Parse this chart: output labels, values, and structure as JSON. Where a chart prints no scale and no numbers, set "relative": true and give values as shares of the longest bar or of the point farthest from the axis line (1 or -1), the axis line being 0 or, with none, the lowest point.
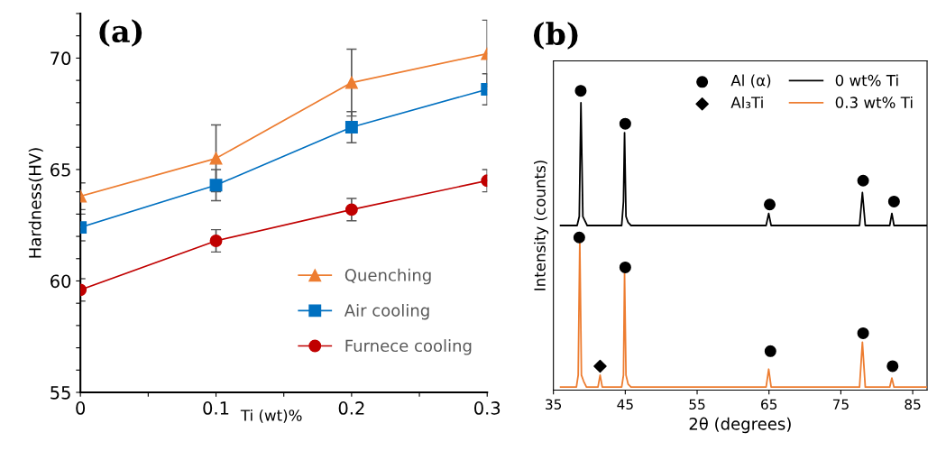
{
  "chart_data": [
    {
      "type": "line",
      "title": "(a)",
      "xlabel": "Ti (wt)%",
      "ylabel": "Hardness(HV)",
      "x": [
        0,
        0.1,
        0.2,
        0.3
      ],
      "xlim": [
        0,
        0.3
      ],
      "xticks": [
        0,
        {
          "value": 0.05,
          "label": null
        },
        0.1,
        {
          "value": 0.15,
          "label": null
        },
        0.2,
        {
          "value": 0.25,
          "label": null
        },
        0.3
      ],
      "ylim": [
        55,
        72
      ],
      "yticks": [
        55,
        {
          "value": 56,
          "label": null
        },
        {
          "value": 57,
          "label": null
        },
        {
          "value": 58,
          "label": null
        },
        {
          "value": 59,
          "label": null
        },
        60,
        {
          "value": 61,
          "label": null
        },
        {
          "value": 62,
          "label": null
        },
        {
          "value": 63,
          "label": null
        },
        {
          "value": 64,
          "label": null
        },
        65,
        {
          "value": 66,
          "label": null
        },
        {
          "value": 67,
          "label": null
        },
        {
          "value": 68,
          "label": null
        },
        {
          "value": 69,
          "label": null
        },
        70,
        {
          "value": 71,
          "label": null
        },
        {
          "value": 72,
          "label": null
        }
      ],
      "series": [
        {
          "name": "Quenching",
          "color": "#ed7d31",
          "marker": "triangle",
          "values": [
            63.8,
            65.5,
            68.9,
            70.2
          ],
          "errors": [
            0.6,
            1.5,
            1.5,
            1.5
          ]
        },
        {
          "name": "Air cooling",
          "color": "#0070c0",
          "marker": "square",
          "values": [
            62.4,
            64.3,
            66.9,
            68.6
          ],
          "errors": [
            0.6,
            0.7,
            0.7,
            0.7
          ]
        },
        {
          "name": "Furnece cooling",
          "color": "#c00000",
          "marker": "circle",
          "values": [
            59.6,
            61.8,
            63.2,
            64.5
          ],
          "errors": [
            0.5,
            0.5,
            0.5,
            0.5
          ]
        }
      ],
      "legend": "bottom right",
      "grid": false
    },
    {
      "type": "line",
      "title": "(b)",
      "xlabel": "2θ (degrees)",
      "ylabel": "Intensity (counts)",
      "relative": true,
      "tick_labels": "x",
      "xlim": [
        35,
        87
      ],
      "xticks": [
        35,
        45,
        55,
        65,
        75,
        85
      ],
      "series": [
        {
          "name": "Al (α)",
          "type": "scatter",
          "marker": "circle",
          "color": "#000000",
          "x": [
            38.8,
            45.0,
            65.1,
            78.1,
            82.4,
            38.6,
            45.0,
            65.2,
            78.1,
            82.2
          ],
          "values": [
            1.0,
            0.89,
            0.62,
            0.7,
            0.63,
            0.51,
            0.41,
            0.13,
            0.19,
            0.08
          ]
        },
        {
          "name": "Al₃Ti",
          "type": "scatter",
          "marker": "diamond",
          "color": "#000000",
          "x": [
            41.5
          ],
          "values": [
            0.08
          ]
        },
        {
          "name": "0 wt% Ti",
          "color": "#000000",
          "x": [
            36,
            38.3,
            38.6,
            38.83,
            39.1,
            39.3,
            39.7,
            44.5,
            44.75,
            44.9,
            45.1,
            45.4,
            45.8,
            64.6,
            64.96,
            65.3,
            77.6,
            78.0,
            78.4,
            81.8,
            82.1,
            82.4,
            87
          ],
          "values": [
            0.55,
            0.55,
            0.58,
            0.96,
            0.58,
            0.57,
            0.55,
            0.55,
            0.63,
            0.86,
            0.58,
            0.56,
            0.55,
            0.55,
            0.59,
            0.55,
            0.55,
            0.66,
            0.55,
            0.55,
            0.59,
            0.55,
            0.55
          ]
        },
        {
          "name": "0.3 wt% Ti",
          "color": "#ed7d31",
          "x": [
            36,
            38.2,
            38.45,
            38.67,
            38.9,
            39.2,
            39.6,
            41.2,
            41.5,
            41.8,
            44.5,
            44.75,
            44.9,
            45.1,
            45.4,
            45.8,
            64.6,
            64.96,
            65.3,
            77.6,
            78.0,
            78.4,
            81.8,
            82.1,
            82.4,
            87
          ],
          "values": [
            0.01,
            0.01,
            0.05,
            0.5,
            0.05,
            0.03,
            0.01,
            0.01,
            0.05,
            0.01,
            0.01,
            0.05,
            0.39,
            0.05,
            0.02,
            0.01,
            0.01,
            0.07,
            0.01,
            0.01,
            0.16,
            0.01,
            0.01,
            0.04,
            0.01,
            0.01
          ]
        }
      ],
      "legend": "top right",
      "grid": false
    }
  ]
}
